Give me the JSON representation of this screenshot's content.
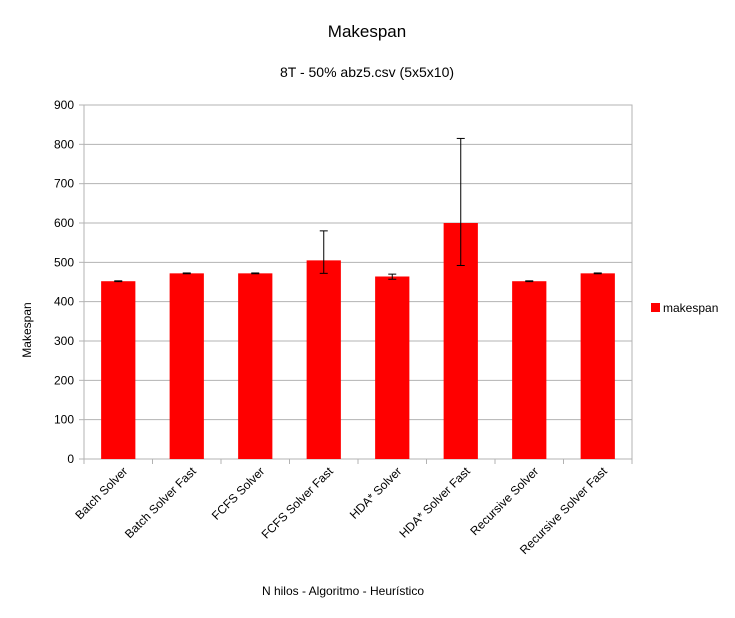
{
  "chart_data": {
    "type": "bar",
    "title": "Makespan",
    "subtitle": "8T - 50% abz5.csv (5x5x10)",
    "xlabel": "N hilos - Algoritmo - Heurístico",
    "ylabel": "Makespan",
    "ylim": [
      0,
      900
    ],
    "yticks": [
      0,
      100,
      200,
      300,
      400,
      500,
      600,
      700,
      800,
      900
    ],
    "grid": true,
    "legend_position": "right",
    "categories": [
      "Batch Solver",
      "Batch Solver Fast",
      "FCFS Solver",
      "FCFS Solver Fast",
      "HDA* Solver",
      "HDA* Solver Fast",
      "Recursive Solver",
      "Recursive Solver Fast"
    ],
    "series": [
      {
        "name": "makespan",
        "color": "#ff0000",
        "values": [
          452,
          472,
          472,
          505,
          464,
          600,
          452,
          472
        ],
        "error_low": [
          451,
          471,
          471,
          472,
          457,
          492,
          451,
          471
        ],
        "error_high": [
          453,
          473,
          473,
          580,
          470,
          815,
          453,
          473
        ]
      }
    ]
  }
}
